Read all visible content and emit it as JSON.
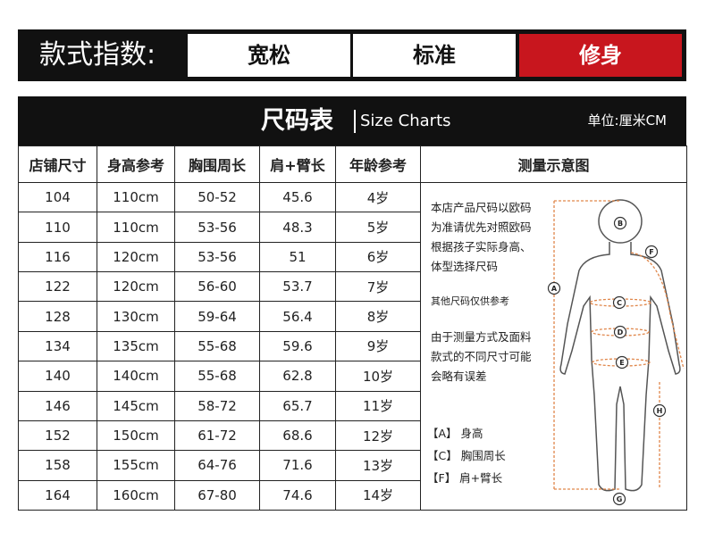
{
  "fit": {
    "label": "款式指数:",
    "options": [
      "宽松",
      "标准",
      "修身"
    ],
    "selected": 2
  },
  "table": {
    "title": "尺码表",
    "subtitle": "Size Charts",
    "unit": "单位:厘米CM",
    "columns": [
      "店铺尺寸",
      "身高参考",
      "胸围周长",
      "肩+臂长",
      "年龄参考",
      "测量示意图"
    ],
    "rows": [
      [
        104,
        "110cm",
        "50-52",
        45.6,
        "4岁"
      ],
      [
        110,
        "110cm",
        "53-56",
        48.3,
        "5岁"
      ],
      [
        116,
        "120cm",
        "53-56",
        51,
        "6岁"
      ],
      [
        122,
        "120cm",
        "56-60",
        53.7,
        "7岁"
      ],
      [
        128,
        "130cm",
        "59-64",
        56.4,
        "8岁"
      ],
      [
        134,
        "135cm",
        "55-68",
        59.6,
        "9岁"
      ],
      [
        140,
        "140cm",
        "55-68",
        62.8,
        "10岁"
      ],
      [
        146,
        "145cm",
        "58-72",
        65.7,
        "11岁"
      ],
      [
        152,
        "150cm",
        "61-72",
        68.6,
        "12岁"
      ],
      [
        158,
        "155cm",
        "64-76",
        71.6,
        "13岁"
      ],
      [
        164,
        "160cm",
        "67-80",
        74.6,
        "14岁"
      ]
    ]
  },
  "diagram": {
    "notes": [
      [
        "本店产品尺码以欧码",
        "为准请优先对照欧码",
        "根据孩子实际身高、",
        "体型选择尺码"
      ],
      [
        "其他尺码仅供参考"
      ],
      [
        "由于测量方式及面料",
        "款式的不同尺寸可能",
        "会略有误差"
      ]
    ],
    "legend": [
      "【A】 身高",
      "【C】 胸围周长",
      "【F】 肩+臂长"
    ],
    "markers": [
      "A",
      "B",
      "F",
      "C",
      "D",
      "E",
      "H",
      "G"
    ]
  }
}
